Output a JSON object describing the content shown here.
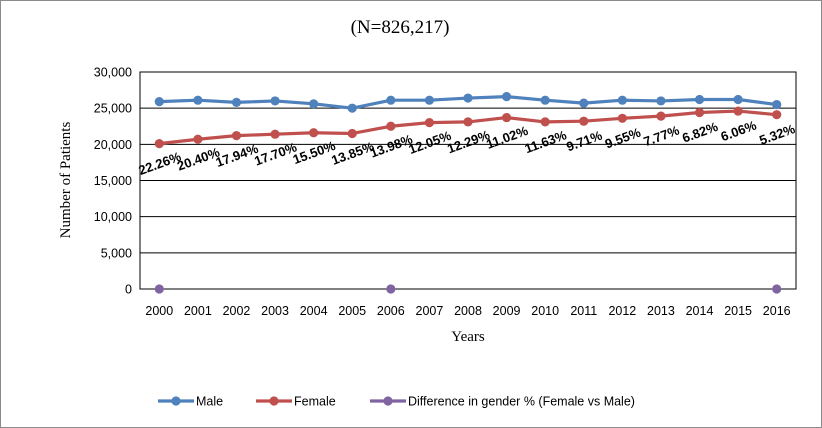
{
  "chart_data": {
    "type": "line",
    "title": "(N=826,217)",
    "xlabel": "Years",
    "ylabel": "Number of Patients",
    "ylim": [
      0,
      30000
    ],
    "yticks": [
      "0",
      "5,000",
      "10,000",
      "15,000",
      "20,000",
      "25,000",
      "30,000"
    ],
    "ytick_values": [
      0,
      5000,
      10000,
      15000,
      20000,
      25000,
      30000
    ],
    "categories": [
      "2000",
      "2001",
      "2002",
      "2003",
      "2004",
      "2005",
      "2006",
      "2007",
      "2008",
      "2009",
      "2010",
      "2011",
      "2012",
      "2013",
      "2014",
      "2015",
      "2016"
    ],
    "grid": "horizontal",
    "legend_position": "bottom",
    "series": [
      {
        "name": "Male",
        "color": "#4f81bd",
        "values": [
          25900,
          26100,
          25800,
          26000,
          25600,
          25000,
          26100,
          26100,
          26400,
          26600,
          26100,
          25700,
          26100,
          26000,
          26200,
          26200,
          25500
        ]
      },
      {
        "name": "Female",
        "color": "#c0504d",
        "values": [
          20100,
          20700,
          21200,
          21400,
          21600,
          21500,
          22500,
          23000,
          23100,
          23700,
          23100,
          23200,
          23600,
          23900,
          24400,
          24600,
          24100
        ]
      },
      {
        "name": "Difference in gender % (Female vs Male)",
        "color": "#8064a2",
        "values": [
          0,
          null,
          null,
          null,
          null,
          null,
          0,
          null,
          null,
          null,
          null,
          null,
          null,
          null,
          null,
          null,
          0
        ]
      }
    ],
    "annotations": [
      "22.26%",
      "20.40%",
      "17.94%",
      "17.70%",
      "15.50%",
      "13.85%",
      "13.98%",
      "12.05%",
      "12.29%",
      "11.02%",
      "11.63%",
      "9.71%",
      "9.55%",
      "7.77%",
      "6.82%",
      "6.06%",
      "5.32%"
    ]
  }
}
